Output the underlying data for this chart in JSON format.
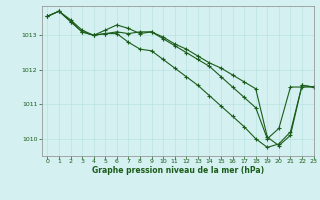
{
  "title": "Graphe pression niveau de la mer (hPa)",
  "bg_color": "#d4f0f0",
  "grid_color": "#b8e2e2",
  "line_color": "#1a5c1a",
  "xlim": [
    -0.5,
    23
  ],
  "ylim": [
    1009.5,
    1013.85
  ],
  "yticks": [
    1010,
    1011,
    1012,
    1013
  ],
  "xticks": [
    0,
    1,
    2,
    3,
    4,
    5,
    6,
    7,
    8,
    9,
    10,
    11,
    12,
    13,
    14,
    15,
    16,
    17,
    18,
    19,
    20,
    21,
    22,
    23
  ],
  "series1": [
    1013.55,
    1013.7,
    1013.45,
    1013.15,
    1013.0,
    1013.05,
    1013.1,
    1013.05,
    1013.1,
    1013.1,
    1012.9,
    1012.7,
    1012.5,
    1012.3,
    1012.1,
    1011.8,
    1011.5,
    1011.2,
    1010.9,
    1010.0,
    1010.3,
    1011.5,
    1011.5,
    1011.5
  ],
  "series2": [
    1013.55,
    1013.7,
    1013.4,
    1013.1,
    1013.0,
    1013.05,
    1013.05,
    1012.8,
    1012.6,
    1012.55,
    1012.3,
    1012.05,
    1011.8,
    1011.55,
    1011.25,
    1010.95,
    1010.65,
    1010.35,
    1010.0,
    1009.75,
    1009.85,
    1010.2,
    1011.55,
    1011.5
  ],
  "series3": [
    1013.55,
    1013.7,
    1013.4,
    1013.1,
    1013.0,
    1013.15,
    1013.3,
    1013.2,
    1013.05,
    1013.1,
    1012.95,
    1012.75,
    1012.6,
    1012.4,
    1012.2,
    1012.05,
    1011.85,
    1011.65,
    1011.45,
    1010.05,
    1009.8,
    1010.1,
    1011.55,
    1011.5
  ]
}
